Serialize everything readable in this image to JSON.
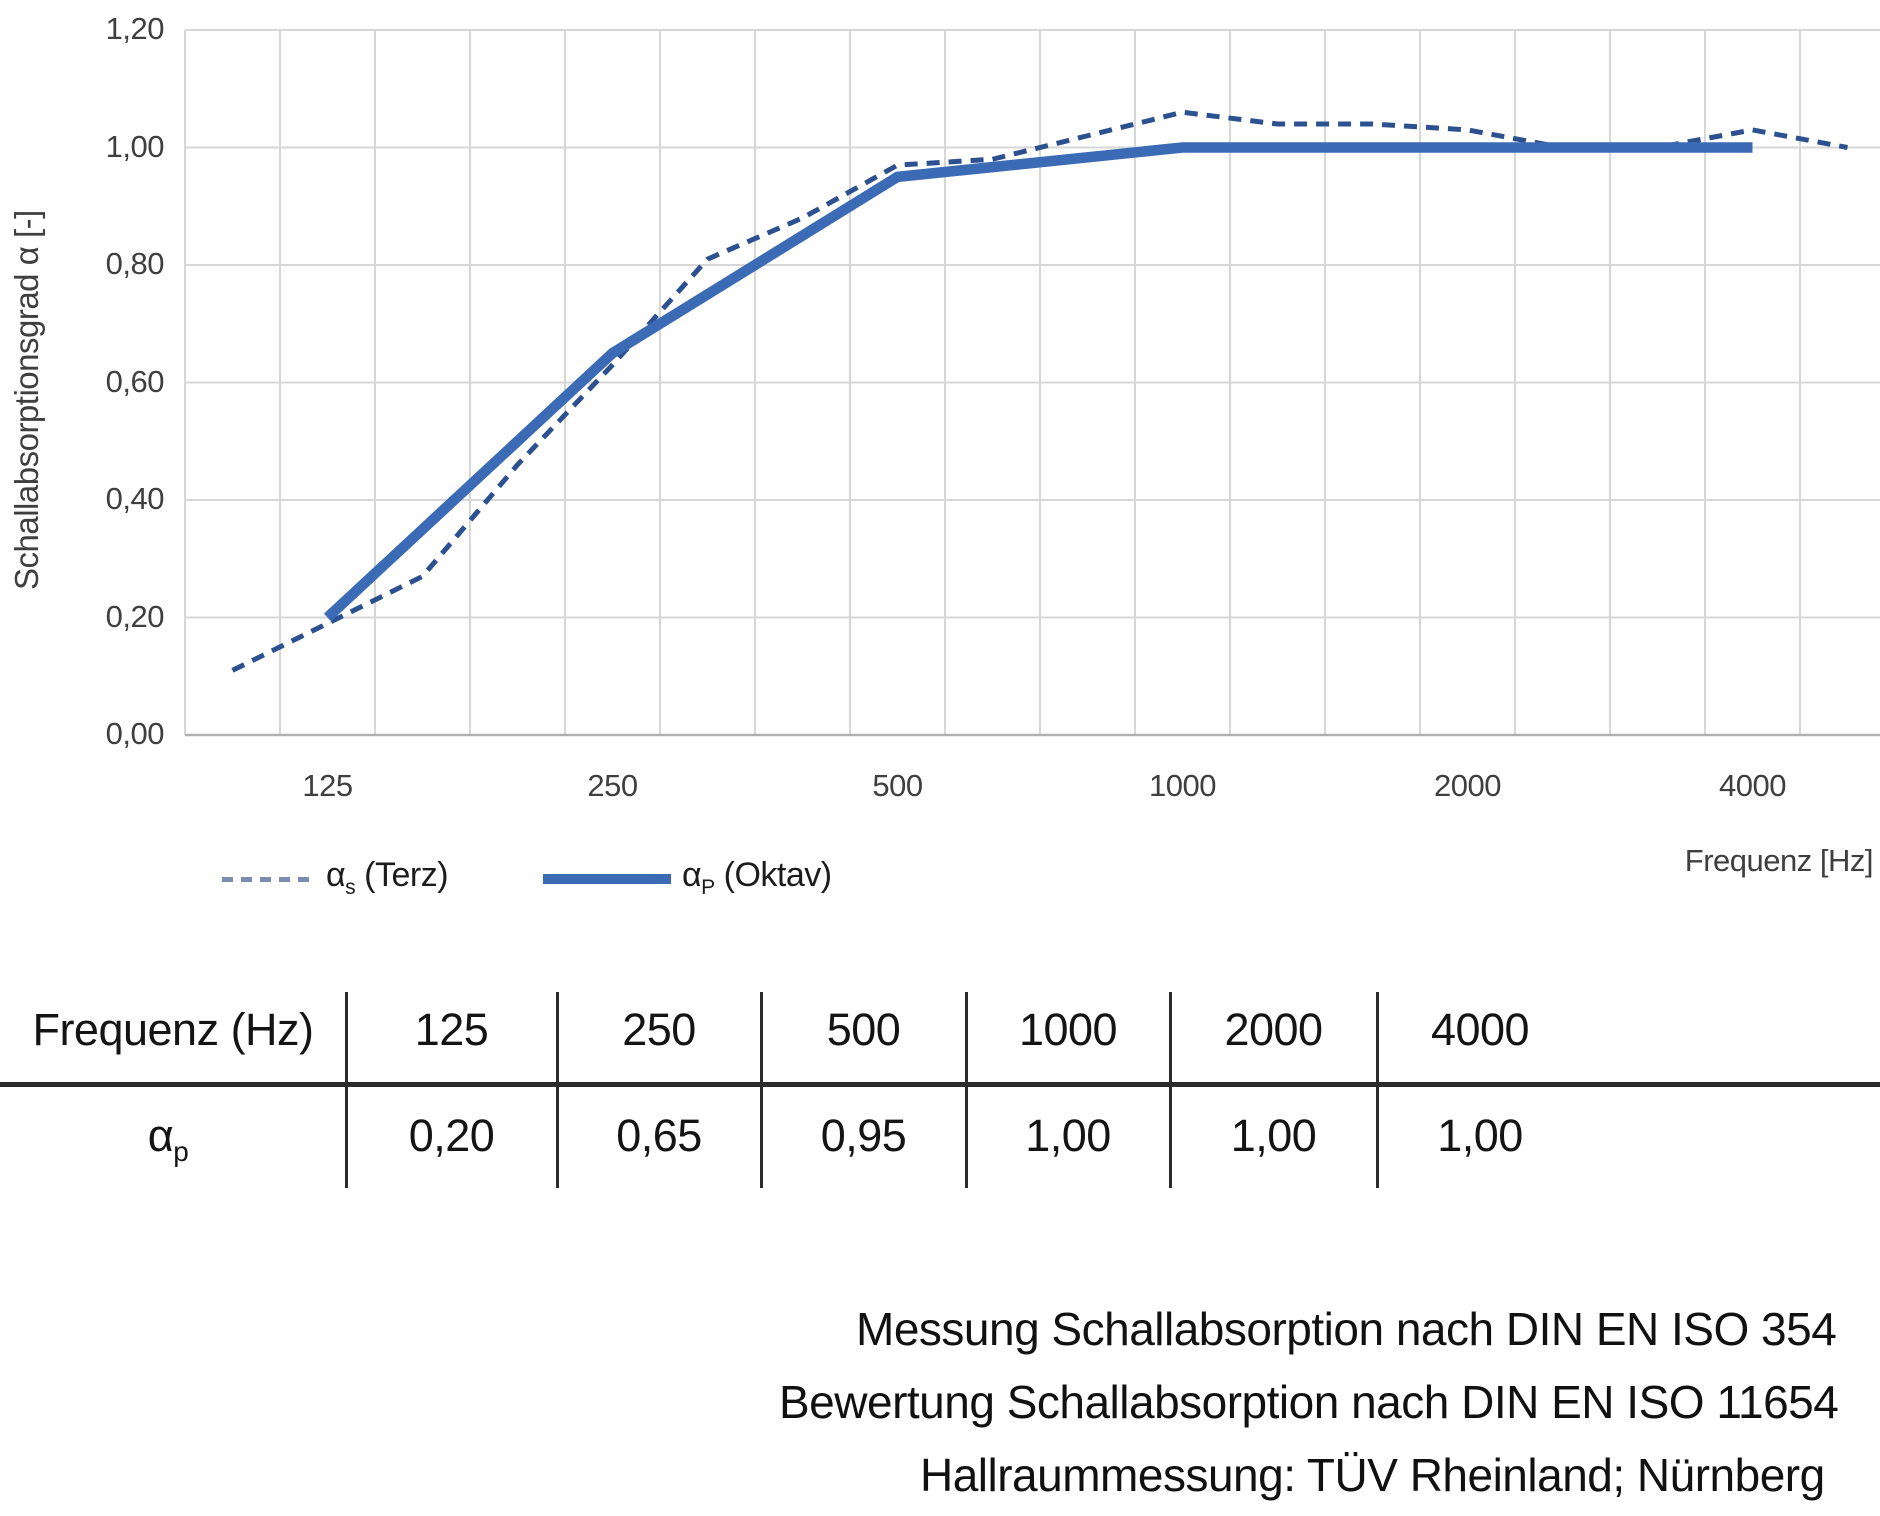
{
  "chart_data": {
    "type": "line",
    "title": "",
    "xlabel": "Frequenz [Hz]",
    "ylabel": "Schallabsorptionsgrad α [-]",
    "x_scale": "logarithmic (third-octave categories)",
    "ylim": [
      0.0,
      1.2
    ],
    "grid": "on",
    "legend_position": "bottom-left",
    "y_ticks": [
      "0,00",
      "0,20",
      "0,40",
      "0,60",
      "0,80",
      "1,00",
      "1,20"
    ],
    "x_ticks": [
      "125",
      "250",
      "500",
      "1000",
      "2000",
      "4000"
    ],
    "series": [
      {
        "name": "αs (Terz)",
        "label": {
          "alpha": "α",
          "sub": "s",
          "rest": " (Terz)"
        },
        "style": "dashed",
        "color": "#2c5191",
        "x": [
          100,
          125,
          160,
          200,
          250,
          315,
          400,
          500,
          630,
          800,
          1000,
          1250,
          1600,
          2000,
          2500,
          3150,
          4000,
          5000
        ],
        "values": [
          0.11,
          0.19,
          0.27,
          0.46,
          0.63,
          0.81,
          0.88,
          0.97,
          0.98,
          1.02,
          1.06,
          1.04,
          1.04,
          1.03,
          1.0,
          1.0,
          1.03,
          1.0
        ]
      },
      {
        "name": "αP (Oktav)",
        "label": {
          "alpha": "α",
          "sub": "P",
          "rest": " (Oktav)"
        },
        "style": "solid",
        "color": "#3b6bb5",
        "x": [
          125,
          250,
          500,
          1000,
          2000,
          4000
        ],
        "values": [
          0.2,
          0.65,
          0.95,
          1.0,
          1.0,
          1.0
        ]
      }
    ]
  },
  "colors": {
    "grid": "#d7d7d7",
    "axis": "#b0b0b0",
    "tick_text": "#3f3f3f",
    "solid_series": "#3b6bb5",
    "dashed_series": "#2c5191",
    "legend_dash_sample": "#7a8cb0",
    "table_lines": "#2b2b2b"
  },
  "table": {
    "header": [
      "Frequenz (Hz)",
      "125",
      "250",
      "500",
      "1000",
      "2000",
      "4000"
    ],
    "row": {
      "label_alpha": "α",
      "label_sub": "p",
      "values": [
        "0,20",
        "0,65",
        "0,95",
        "1,00",
        "1,00",
        "1,00"
      ]
    }
  },
  "footer": {
    "lines": [
      "Messung Schallabsorption nach DIN EN ISO 354",
      "Bewertung Schallabsorption nach DIN EN ISO 11654",
      "Hallraummessung: TÜV Rheinland; Nürnberg"
    ]
  }
}
